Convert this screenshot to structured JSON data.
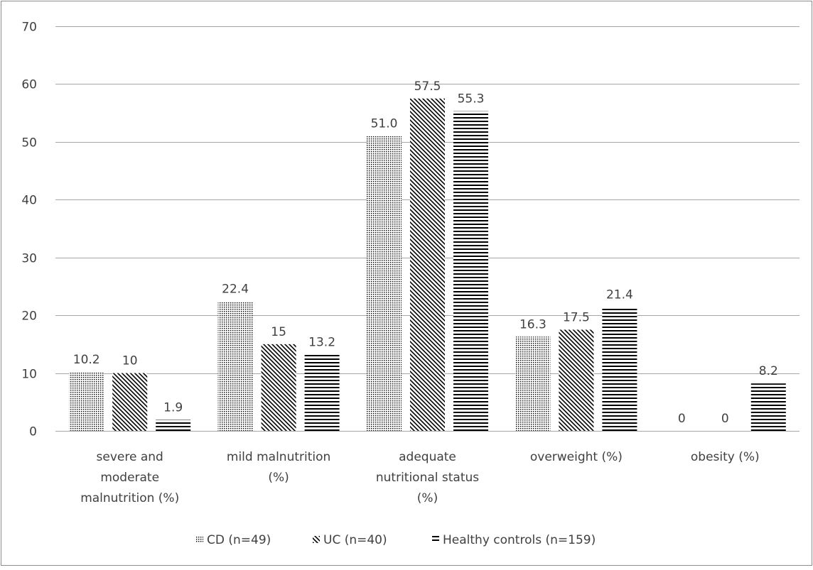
{
  "chart_data": {
    "type": "bar",
    "title": "",
    "xlabel": "",
    "ylabel": "",
    "ylim": [
      0,
      70
    ],
    "yticks": [
      0,
      10,
      20,
      30,
      40,
      50,
      60,
      70
    ],
    "grid": true,
    "legend_position": "bottom",
    "categories": [
      [
        "severe and",
        "moderate",
        "malnutrition (%)"
      ],
      [
        "mild malnutrition",
        "(%)"
      ],
      [
        "adequate",
        "nutritional status",
        "(%)"
      ],
      [
        "overweight (%)"
      ],
      [
        "obesity (%)"
      ]
    ],
    "series": [
      {
        "name": "CD (n=49)",
        "pattern": "dots",
        "values": [
          10.2,
          22.4,
          51.0,
          16.3,
          0
        ],
        "labels": [
          "10.2",
          "22.4",
          "51.0",
          "16.3",
          "0"
        ]
      },
      {
        "name": "UC (n=40)",
        "pattern": "diagonal",
        "values": [
          10,
          15,
          57.5,
          17.5,
          0
        ],
        "labels": [
          "10",
          "15",
          "57.5",
          "17.5",
          "0"
        ]
      },
      {
        "name": "Healthy controls (n=159)",
        "pattern": "horizontal",
        "values": [
          1.9,
          13.2,
          55.3,
          21.4,
          8.2
        ],
        "labels": [
          "1.9",
          "13.2",
          "55.3",
          "21.4",
          "8.2"
        ]
      }
    ],
    "colors": {
      "bar_fill": "#000000",
      "gridline": "#a6a6a6",
      "text": "#404040",
      "border": "#8c8c8c"
    }
  }
}
